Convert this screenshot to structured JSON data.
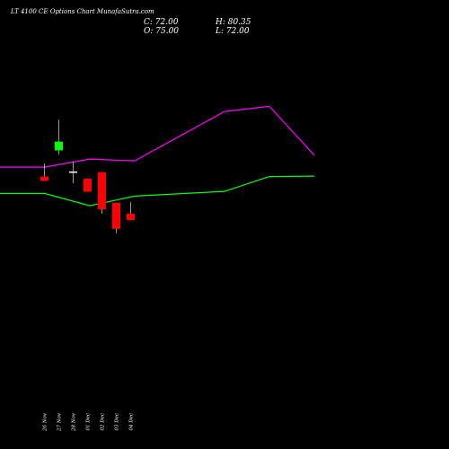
{
  "header": {
    "title": "LT 4100  CE Options  Chart MunafaSutra.com",
    "close_label": "C: 72.00",
    "high_label": "H: 80.35",
    "open_label": "O: 75.00",
    "low_label": "L: 72.00"
  },
  "chart_data": {
    "type": "candlestick",
    "background": "#000000",
    "categories": [
      "26 Nov",
      "27 Nov",
      "28 Nov",
      "01 Dec",
      "02 Dec",
      "03 Dec",
      "04 Dec"
    ],
    "candles": [
      {
        "date": "26 Nov",
        "open": 92,
        "high": 98,
        "low": 90,
        "close": 90
      },
      {
        "date": "27 Nov",
        "open": 104,
        "high": 118,
        "low": 102,
        "close": 108
      },
      {
        "date": "28 Nov",
        "open": 94,
        "high": 99,
        "low": 89,
        "close": 94
      },
      {
        "date": "01 Dec",
        "open": 91,
        "high": 91,
        "low": 85,
        "close": 85
      },
      {
        "date": "02 Dec",
        "open": 94,
        "high": 94,
        "low": 75,
        "close": 77
      },
      {
        "date": "03 Dec",
        "open": 80,
        "high": 80,
        "low": 66,
        "close": 68
      },
      {
        "date": "04 Dec",
        "open": 75,
        "high": 80.35,
        "low": 72,
        "close": 72
      }
    ],
    "series": [
      {
        "color": "#00ff00",
        "values": [
          84.2,
          84.2,
          78.6,
          83.0,
          85.2,
          92.0,
          92.2
        ]
      },
      {
        "color": "#ff00ff",
        "values": [
          96.3,
          96.3,
          100.0,
          99.2,
          121.8,
          124.2,
          101.8
        ]
      }
    ],
    "colors": {
      "up": "#00ff00",
      "down": "#ff0000",
      "flat": "#ffffff",
      "wick": "#ffffff"
    }
  }
}
